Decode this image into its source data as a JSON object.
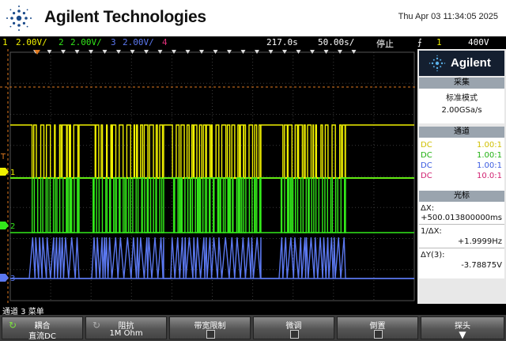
{
  "header": {
    "brand": "Agilent Technologies",
    "datetime": "Thu Apr 03 11:34:05 2025"
  },
  "status": {
    "ch1_num": "1",
    "ch1_scale": "2.00V/",
    "ch2_num": "2",
    "ch2_scale": "2.00V/",
    "ch3_num": "3",
    "ch3_scale": "2.00V/",
    "ch4_num": "4",
    "delay": "217.0s",
    "timebase": "50.00s/",
    "run_state": "停止",
    "trig_icon": "⨍",
    "trig_src": "1",
    "trig_level": "400V"
  },
  "colors": {
    "ch1": "#f0f000",
    "ch2": "#33e81a",
    "ch3": "#5b78f0",
    "ch4": "#e0307a",
    "marker": "#e07a20"
  },
  "markers": {
    "ch1": "1",
    "ch2": "2",
    "ch3": "3",
    "trig": "T"
  },
  "side": {
    "brand": "Agilent",
    "acq_title": "采集",
    "acq_mode": "标准模式",
    "acq_rate": "2.00GSa/s",
    "chan_title": "通道",
    "channels": [
      {
        "coupling": "DC",
        "probe": "1.00:1"
      },
      {
        "coupling": "DC",
        "probe": "1.00:1"
      },
      {
        "coupling": "DC",
        "probe": "1.00:1"
      },
      {
        "coupling": "DC",
        "probe": "10.0:1"
      }
    ],
    "cursor_title": "光标",
    "dx_label": "ΔX:",
    "dx_value": "+500.013800000ms",
    "inv_dx_label": "1/ΔX:",
    "inv_dx_value": "+1.9999Hz",
    "dy_label": "ΔY(3):",
    "dy_value": "-3.78875V"
  },
  "menu_title": "通道 3 菜单",
  "softkeys": [
    {
      "title": "耦合",
      "value": "直流DC",
      "icon": "↻"
    },
    {
      "title": "阻抗",
      "value": "1M Ohm",
      "icon": "↻"
    },
    {
      "title": "带宽限制",
      "value": ""
    },
    {
      "title": "微调",
      "value": ""
    },
    {
      "title": "倒置",
      "value": ""
    },
    {
      "title": "探头",
      "value": "▼"
    }
  ]
}
